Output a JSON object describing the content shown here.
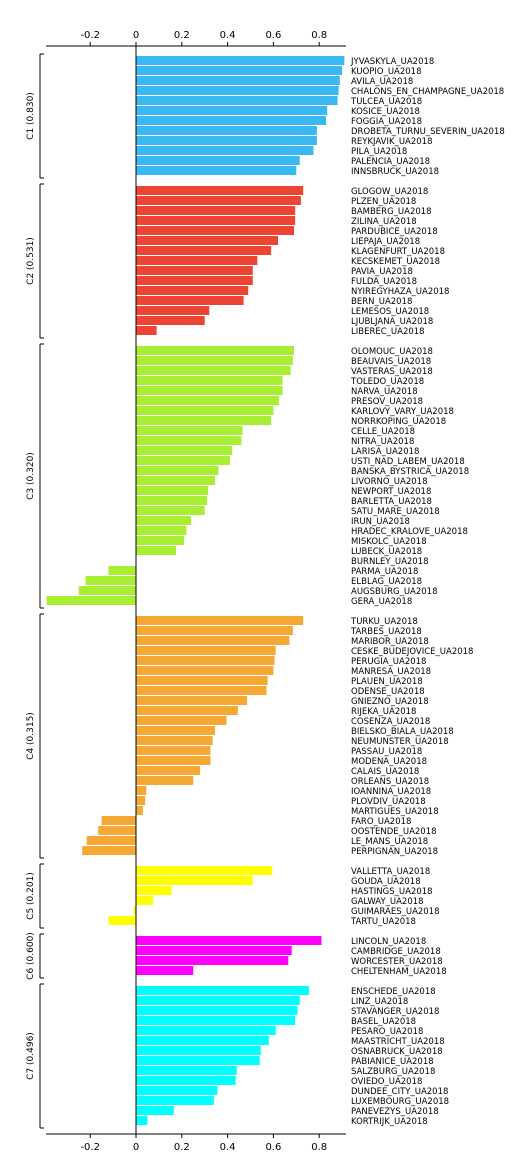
{
  "chart_data": {
    "type": "bar",
    "orientation": "horizontal",
    "xlim": [
      -0.4,
      0.9
    ],
    "x_ticks": [
      "-0.2",
      "0",
      "0.2",
      "0.4",
      "0.6",
      "0.8"
    ],
    "grid": false,
    "legend": "none",
    "clusters": [
      {
        "label": "C1 (0.830)",
        "color": "#39b8f2",
        "items": [
          {
            "name": "JYVASKYLA_UA2018",
            "value": 0.91
          },
          {
            "name": "KUOPIO_UA2018",
            "value": 0.9
          },
          {
            "name": "AVILA_UA2018",
            "value": 0.89
          },
          {
            "name": "CHALONS_EN_CHAMPAGNE_UA2018",
            "value": 0.885
          },
          {
            "name": "TULCEA_UA2018",
            "value": 0.88
          },
          {
            "name": "KOSICE_UA2018",
            "value": 0.835
          },
          {
            "name": "FOGGIA_UA2018",
            "value": 0.83
          },
          {
            "name": "DROBETA_TURNU_SEVERIN_UA2018",
            "value": 0.79
          },
          {
            "name": "REYKJAVIK_UA2018",
            "value": 0.79
          },
          {
            "name": "PILA_UA2018",
            "value": 0.775
          },
          {
            "name": "PALENCIA_UA2018",
            "value": 0.715
          },
          {
            "name": "INNSBRUCK_UA2018",
            "value": 0.7
          }
        ]
      },
      {
        "label": "C2 (0.531)",
        "color": "#ee4433",
        "items": [
          {
            "name": "GLOGOW_UA2018",
            "value": 0.73
          },
          {
            "name": "PLZEN_UA2018",
            "value": 0.72
          },
          {
            "name": "BAMBERG_UA2018",
            "value": 0.695
          },
          {
            "name": "ZILINA_UA2018",
            "value": 0.695
          },
          {
            "name": "PARDUBICE_UA2018",
            "value": 0.69
          },
          {
            "name": "LIEPAJA_UA2018",
            "value": 0.62
          },
          {
            "name": "KLAGENFURT_UA2018",
            "value": 0.59
          },
          {
            "name": "KECSKEMET_UA2018",
            "value": 0.53
          },
          {
            "name": "PAVIA_UA2018",
            "value": 0.51
          },
          {
            "name": "FULDA_UA2018",
            "value": 0.51
          },
          {
            "name": "NYIREGYHAZA_UA2018",
            "value": 0.49
          },
          {
            "name": "BERN_UA2018",
            "value": 0.47
          },
          {
            "name": "LEMESOS_UA2018",
            "value": 0.32
          },
          {
            "name": "LJUBLJANA_UA2018",
            "value": 0.3
          },
          {
            "name": "LIBEREC_UA2018",
            "value": 0.09
          }
        ]
      },
      {
        "label": "C3 (0.320)",
        "color": "#a8ee33",
        "items": [
          {
            "name": "OLOMOUC_UA2018",
            "value": 0.69
          },
          {
            "name": "BEAUVAIS_UA2018",
            "value": 0.685
          },
          {
            "name": "VASTERAS_UA2018",
            "value": 0.675
          },
          {
            "name": "TOLEDO_UA2018",
            "value": 0.64
          },
          {
            "name": "NARVA_UA2018",
            "value": 0.64
          },
          {
            "name": "PRESOV_UA2018",
            "value": 0.625
          },
          {
            "name": "KARLOVY_VARY_UA2018",
            "value": 0.6
          },
          {
            "name": "NORRKOPING_UA2018",
            "value": 0.59
          },
          {
            "name": "CELLE_UA2018",
            "value": 0.465
          },
          {
            "name": "NITRA_UA2018",
            "value": 0.46
          },
          {
            "name": "LARISA_UA2018",
            "value": 0.42
          },
          {
            "name": "USTI_NAD_LABEM_UA2018",
            "value": 0.41
          },
          {
            "name": "BANSKA_BYSTRICA_UA2018",
            "value": 0.36
          },
          {
            "name": "LIVORNO_UA2018",
            "value": 0.345
          },
          {
            "name": "NEWPORT_UA2018",
            "value": 0.315
          },
          {
            "name": "BARLETTA_UA2018",
            "value": 0.31
          },
          {
            "name": "SATU_MARE_UA2018",
            "value": 0.3
          },
          {
            "name": "IRUN_UA2018",
            "value": 0.24
          },
          {
            "name": "HRADEC_KRALOVE_UA2018",
            "value": 0.22
          },
          {
            "name": "MISKOLC_UA2018",
            "value": 0.21
          },
          {
            "name": "LUBECK_UA2018",
            "value": 0.175
          },
          {
            "name": "BURNLEY_UA2018",
            "value": 0.0
          },
          {
            "name": "PARMA_UA2018",
            "value": -0.12
          },
          {
            "name": "ELBLAG_UA2018",
            "value": -0.22
          },
          {
            "name": "AUGSBURG_UA2018",
            "value": -0.25
          },
          {
            "name": "GERA_UA2018",
            "value": -0.39
          }
        ]
      },
      {
        "label": "C4 (0.315)",
        "color": "#f5a833",
        "items": [
          {
            "name": "TURKU_UA2018",
            "value": 0.73
          },
          {
            "name": "TARBES_UA2018",
            "value": 0.685
          },
          {
            "name": "MARIBOR_UA2018",
            "value": 0.67
          },
          {
            "name": "CESKE_BUDEJOVICE_UA2018",
            "value": 0.61
          },
          {
            "name": "PERUGIA_UA2018",
            "value": 0.605
          },
          {
            "name": "MANRESA_UA2018",
            "value": 0.6
          },
          {
            "name": "PLAUEN_UA2018",
            "value": 0.575
          },
          {
            "name": "ODENSE_UA2018",
            "value": 0.57
          },
          {
            "name": "GNIEZNO_UA2018",
            "value": 0.485
          },
          {
            "name": "RIJEKA_UA2018",
            "value": 0.445
          },
          {
            "name": "COSENZA_UA2018",
            "value": 0.395
          },
          {
            "name": "BIELSKO_BIALA_UA2018",
            "value": 0.345
          },
          {
            "name": "NEUMUNSTER_UA2018",
            "value": 0.335
          },
          {
            "name": "PASSAU_UA2018",
            "value": 0.325
          },
          {
            "name": "MODENA_UA2018",
            "value": 0.325
          },
          {
            "name": "CALAIS_UA2018",
            "value": 0.28
          },
          {
            "name": "ORLEANS_UA2018",
            "value": 0.25
          },
          {
            "name": "IOANNINA_UA2018",
            "value": 0.045
          },
          {
            "name": "PLOVDIV_UA2018",
            "value": 0.04
          },
          {
            "name": "MARTIGUES_UA2018",
            "value": 0.03
          },
          {
            "name": "FARO_UA2018",
            "value": -0.15
          },
          {
            "name": "OOSTENDE_UA2018",
            "value": -0.165
          },
          {
            "name": "LE_MANS_UA2018",
            "value": -0.215
          },
          {
            "name": "PERPIGNAN_UA2018",
            "value": -0.235
          }
        ]
      },
      {
        "label": "C5 (0.201)",
        "color": "#ffff00",
        "items": [
          {
            "name": "VALLETTA_UA2018",
            "value": 0.595
          },
          {
            "name": "GOUDA_UA2018",
            "value": 0.51
          },
          {
            "name": "HASTINGS_UA2018",
            "value": 0.155
          },
          {
            "name": "GALWAY_UA2018",
            "value": 0.075
          },
          {
            "name": "GUIMARAES_UA2018",
            "value": -0.01
          },
          {
            "name": "TARTU_UA2018",
            "value": -0.12
          }
        ]
      },
      {
        "label": "C6 (0.600)",
        "color": "#ff00ff",
        "items": [
          {
            "name": "LINCOLN_UA2018",
            "value": 0.81
          },
          {
            "name": "CAMBRIDGE_UA2018",
            "value": 0.68
          },
          {
            "name": "WORCESTER_UA2018",
            "value": 0.665
          },
          {
            "name": "CHELTENHAM_UA2018",
            "value": 0.25
          }
        ]
      },
      {
        "label": "C7 (0.496)",
        "color": "#00ffff",
        "items": [
          {
            "name": "ENSCHEDE_UA2018",
            "value": 0.755
          },
          {
            "name": "LINZ_UA2018",
            "value": 0.715
          },
          {
            "name": "STAVANGER_UA2018",
            "value": 0.705
          },
          {
            "name": "BASEL_UA2018",
            "value": 0.695
          },
          {
            "name": "PESARO_UA2018",
            "value": 0.61
          },
          {
            "name": "MAASTRICHT_UA2018",
            "value": 0.58
          },
          {
            "name": "OSNABRUCK_UA2018",
            "value": 0.545
          },
          {
            "name": "PABIANICE_UA2018",
            "value": 0.54
          },
          {
            "name": "SALZBURG_UA2018",
            "value": 0.44
          },
          {
            "name": "OVIEDO_UA2018",
            "value": 0.435
          },
          {
            "name": "DUNDEE_CITY_UA2018",
            "value": 0.355
          },
          {
            "name": "LUXEMBOURG_UA2018",
            "value": 0.34
          },
          {
            "name": "PANEVEZYS_UA2018",
            "value": 0.165
          },
          {
            "name": "KORTRIJK_UA2018",
            "value": 0.05
          }
        ]
      }
    ]
  }
}
